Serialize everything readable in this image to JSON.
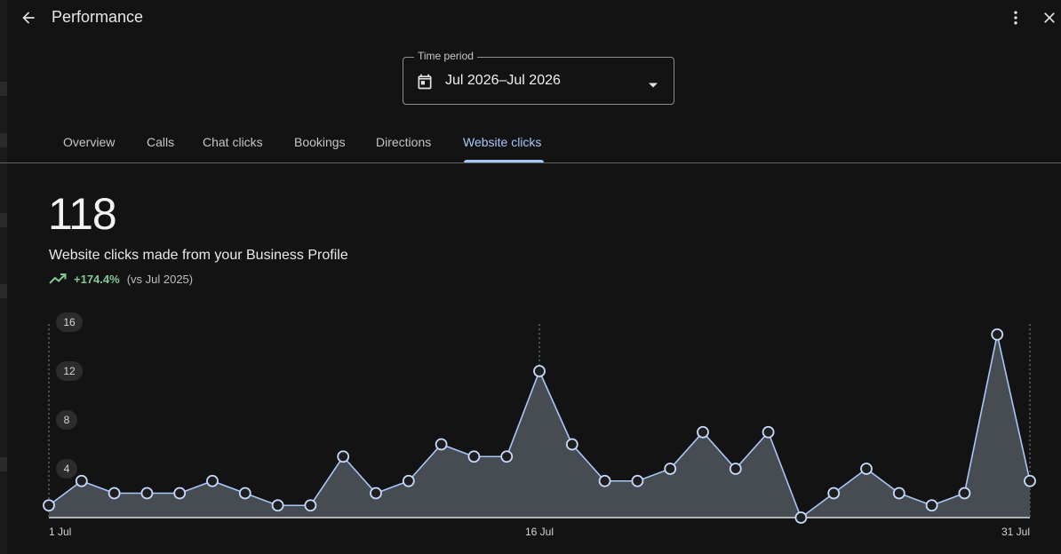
{
  "header": {
    "title": "Performance"
  },
  "time_period": {
    "label": "Time period",
    "value": "Jul 2026–Jul 2026"
  },
  "tabs": [
    {
      "label": "Overview"
    },
    {
      "label": "Calls"
    },
    {
      "label": "Chat clicks"
    },
    {
      "label": "Bookings"
    },
    {
      "label": "Directions"
    },
    {
      "label": "Website clicks",
      "active": true
    }
  ],
  "metric": {
    "value": "118",
    "description": "Website clicks made from your Business Profile",
    "change": "+174.4%",
    "comparison": "(vs Jul 2025)"
  },
  "colors": {
    "background": "#131313",
    "accent": "#a8c7fa",
    "positive": "#81c995",
    "area_fill": "#474b52"
  },
  "chart_data": {
    "type": "area",
    "x": [
      "1 Jul",
      "2 Jul",
      "3 Jul",
      "4 Jul",
      "5 Jul",
      "6 Jul",
      "7 Jul",
      "8 Jul",
      "9 Jul",
      "10 Jul",
      "11 Jul",
      "12 Jul",
      "13 Jul",
      "14 Jul",
      "15 Jul",
      "16 Jul",
      "17 Jul",
      "18 Jul",
      "19 Jul",
      "20 Jul",
      "21 Jul",
      "22 Jul",
      "23 Jul",
      "24 Jul",
      "25 Jul",
      "26 Jul",
      "27 Jul",
      "28 Jul",
      "29 Jul",
      "30 Jul",
      "31 Jul"
    ],
    "values": [
      1,
      3,
      2,
      2,
      2,
      3,
      2,
      1,
      1,
      5,
      2,
      3,
      6,
      5,
      5,
      12,
      6,
      3,
      3,
      4,
      7,
      4,
      7,
      0,
      2,
      4,
      2,
      1,
      2,
      15,
      3
    ],
    "ylim": [
      0,
      16
    ],
    "y_ticks": [
      "16",
      "12",
      "8",
      "4"
    ],
    "y_tick_values": [
      16,
      12,
      8,
      4
    ],
    "x_tick_labels": [
      "1 Jul",
      "16 Jul",
      "31 Jul"
    ],
    "x_tick_indices": [
      0,
      15,
      30
    ]
  }
}
